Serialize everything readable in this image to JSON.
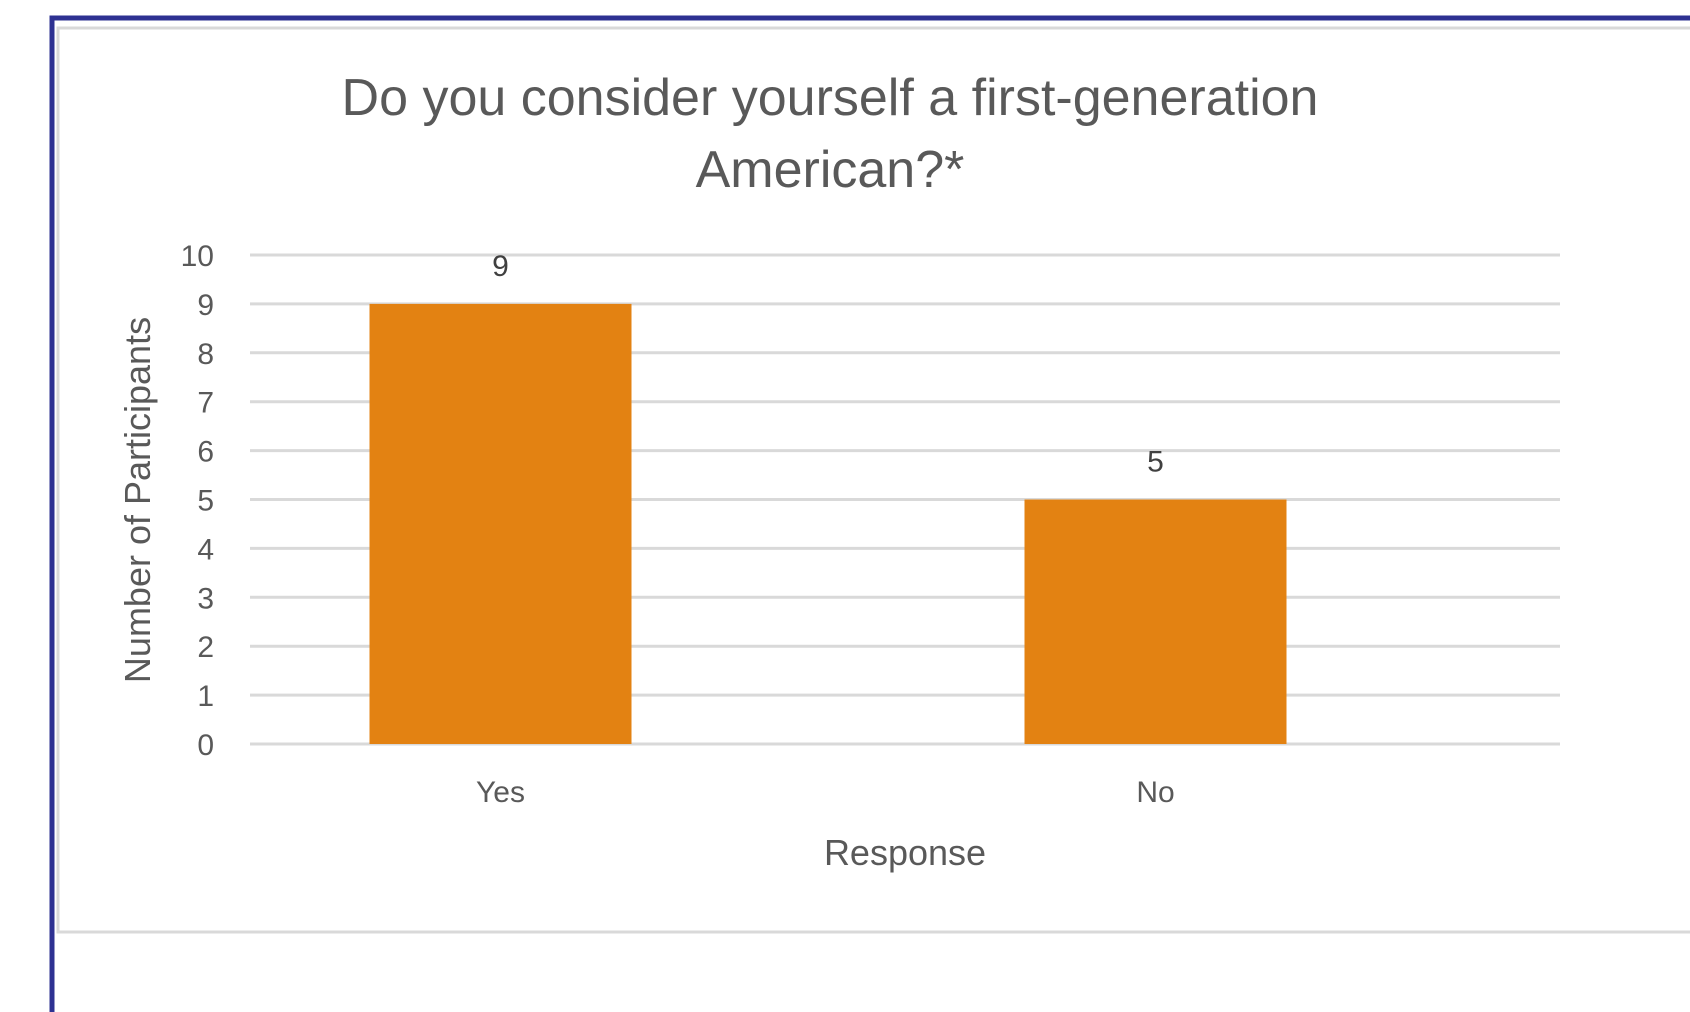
{
  "chart_data": {
    "type": "bar",
    "title_lines": [
      "Do you consider yourself a first-generation",
      "American?*"
    ],
    "xlabel": "Response",
    "ylabel": "Number of Participants",
    "categories": [
      "Yes",
      "No"
    ],
    "values": [
      9,
      5
    ],
    "ylim": [
      0,
      10
    ],
    "yticks": [
      "0",
      "1",
      "2",
      "3",
      "4",
      "5",
      "6",
      "7",
      "8",
      "9",
      "10"
    ],
    "data_labels": [
      "9",
      "5"
    ],
    "grid": true,
    "legend": "none",
    "colors": {
      "bar": "#E38212",
      "grid": "#D9D9D9",
      "text": "#595959",
      "frame": "#2E3192"
    }
  }
}
